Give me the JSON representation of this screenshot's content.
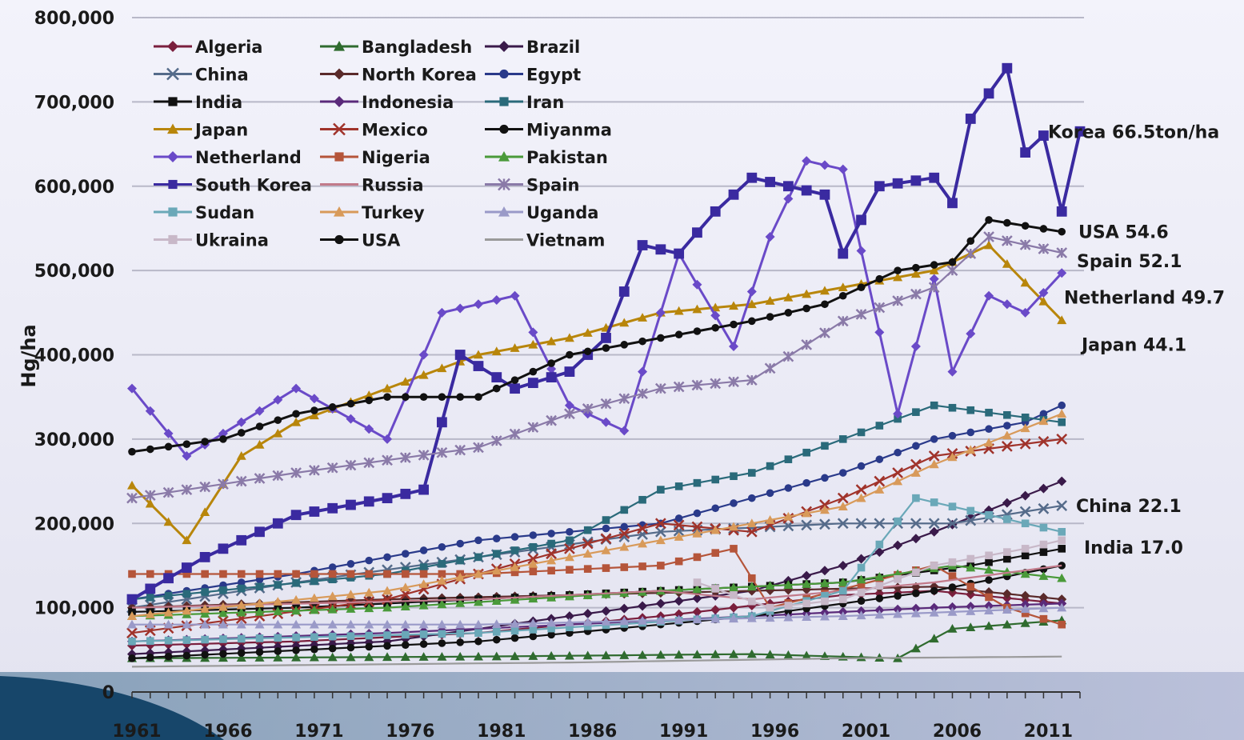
{
  "chart_data": {
    "type": "line",
    "title": "",
    "xlabel": "",
    "ylabel": "Hg/ha",
    "xlim": [
      1961,
      2013
    ],
    "ylim": [
      0,
      800000
    ],
    "yticks": [
      0,
      100000,
      200000,
      300000,
      400000,
      500000,
      600000,
      700000,
      800000
    ],
    "ytick_labels": [
      "0",
      "100,000",
      "200,000",
      "300,000",
      "400,000",
      "500,000",
      "600,000",
      "700,000",
      "800,000"
    ],
    "xticks": [
      1961,
      1966,
      1971,
      1976,
      1981,
      1986,
      1991,
      1996,
      2001,
      2006,
      2011
    ],
    "xtick_labels": [
      "1961",
      "1966",
      "1971",
      "1976",
      "1981",
      "1986",
      "1991",
      "1996",
      "2001",
      "2006",
      "2011"
    ],
    "grid": true,
    "legend": "top-left",
    "x_start": 1961,
    "series": [
      {
        "name": "Algeria",
        "color": "#7a1f3d",
        "marker": "diamond",
        "anchors": [
          [
            1961,
            55000
          ],
          [
            1970,
            60000
          ],
          [
            1980,
            70000
          ],
          [
            1990,
            90000
          ],
          [
            2000,
            115000
          ],
          [
            2005,
            120000
          ],
          [
            2012,
            105000
          ]
        ]
      },
      {
        "name": "Bangladesh",
        "color": "#2f6b2f",
        "marker": "triangle",
        "anchors": [
          [
            1961,
            40000
          ],
          [
            1980,
            42000
          ],
          [
            1995,
            45000
          ],
          [
            2003,
            40000
          ],
          [
            2006,
            75000
          ],
          [
            2012,
            85000
          ]
        ]
      },
      {
        "name": "Brazil",
        "color": "#3a1a4a",
        "marker": "diamond",
        "anchors": [
          [
            1961,
            45000
          ],
          [
            1975,
            60000
          ],
          [
            1985,
            90000
          ],
          [
            1995,
            120000
          ],
          [
            2000,
            150000
          ],
          [
            2005,
            190000
          ],
          [
            2012,
            250000
          ]
        ]
      },
      {
        "name": "China",
        "color": "#556b8a",
        "marker": "x",
        "anchors": [
          [
            1961,
            100000
          ],
          [
            1970,
            130000
          ],
          [
            1980,
            160000
          ],
          [
            1990,
            190000
          ],
          [
            2000,
            200000
          ],
          [
            2006,
            200000
          ],
          [
            2012,
            221000
          ]
        ]
      },
      {
        "name": "North Korea",
        "color": "#5a2a2a",
        "marker": "diamond",
        "anchors": [
          [
            1961,
            100000
          ],
          [
            1975,
            110000
          ],
          [
            1985,
            115000
          ],
          [
            1995,
            120000
          ],
          [
            2005,
            125000
          ],
          [
            2012,
            110000
          ]
        ]
      },
      {
        "name": "Egypt",
        "color": "#2a3a8a",
        "marker": "circle",
        "anchors": [
          [
            1961,
            110000
          ],
          [
            1970,
            140000
          ],
          [
            1980,
            180000
          ],
          [
            1990,
            200000
          ],
          [
            2000,
            260000
          ],
          [
            2005,
            300000
          ],
          [
            2010,
            320000
          ],
          [
            2012,
            340000
          ]
        ]
      },
      {
        "name": "India",
        "color": "#111111",
        "marker": "square",
        "anchors": [
          [
            1961,
            95000
          ],
          [
            1970,
            100000
          ],
          [
            1980,
            110000
          ],
          [
            1990,
            120000
          ],
          [
            2000,
            130000
          ],
          [
            2007,
            150000
          ],
          [
            2012,
            170000
          ]
        ]
      },
      {
        "name": "Indonesia",
        "color": "#5a2a7a",
        "marker": "diamond",
        "anchors": [
          [
            1961,
            60000
          ],
          [
            1975,
            70000
          ],
          [
            1985,
            80000
          ],
          [
            1995,
            90000
          ],
          [
            2005,
            100000
          ],
          [
            2012,
            105000
          ]
        ]
      },
      {
        "name": "Iran",
        "color": "#2a6a7a",
        "marker": "square",
        "anchors": [
          [
            1961,
            110000
          ],
          [
            1975,
            140000
          ],
          [
            1985,
            180000
          ],
          [
            1990,
            240000
          ],
          [
            1995,
            260000
          ],
          [
            2000,
            300000
          ],
          [
            2005,
            340000
          ],
          [
            2012,
            320000
          ]
        ]
      },
      {
        "name": "Japan",
        "color": "#b8860b",
        "marker": "triangle",
        "anchors": [
          [
            1961,
            245000
          ],
          [
            1964,
            180000
          ],
          [
            1967,
            280000
          ],
          [
            1970,
            320000
          ],
          [
            1975,
            360000
          ],
          [
            1980,
            400000
          ],
          [
            1985,
            420000
          ],
          [
            1990,
            450000
          ],
          [
            1995,
            460000
          ],
          [
            2000,
            480000
          ],
          [
            2005,
            500000
          ],
          [
            2008,
            530000
          ],
          [
            2012,
            441000
          ]
        ]
      },
      {
        "name": "Mexico",
        "color": "#a0332b",
        "marker": "x",
        "anchors": [
          [
            1961,
            70000
          ],
          [
            1975,
            110000
          ],
          [
            1985,
            170000
          ],
          [
            1990,
            200000
          ],
          [
            1995,
            190000
          ],
          [
            2000,
            230000
          ],
          [
            2005,
            280000
          ],
          [
            2012,
            300000
          ]
        ]
      },
      {
        "name": "Miyanma",
        "color": "#111111",
        "marker": "circle",
        "anchors": [
          [
            1961,
            40000
          ],
          [
            1980,
            60000
          ],
          [
            1995,
            90000
          ],
          [
            2005,
            120000
          ],
          [
            2012,
            150000
          ]
        ]
      },
      {
        "name": "Netherland",
        "color": "#6a4ac8",
        "marker": "diamond",
        "anchors": [
          [
            1961,
            360000
          ],
          [
            1964,
            280000
          ],
          [
            1970,
            360000
          ],
          [
            1975,
            300000
          ],
          [
            1978,
            450000
          ],
          [
            1982,
            470000
          ],
          [
            1985,
            340000
          ],
          [
            1988,
            310000
          ],
          [
            1991,
            520000
          ],
          [
            1994,
            410000
          ],
          [
            1996,
            540000
          ],
          [
            1998,
            630000
          ],
          [
            2000,
            620000
          ],
          [
            2003,
            330000
          ],
          [
            2005,
            490000
          ],
          [
            2006,
            380000
          ],
          [
            2008,
            470000
          ],
          [
            2010,
            450000
          ],
          [
            2012,
            497000
          ]
        ]
      },
      {
        "name": "Nigeria",
        "color": "#b5553a",
        "marker": "square",
        "anchors": [
          [
            1961,
            140000
          ],
          [
            1970,
            140000
          ],
          [
            1980,
            140000
          ],
          [
            1990,
            150000
          ],
          [
            1994,
            170000
          ],
          [
            1996,
            100000
          ],
          [
            2005,
            150000
          ],
          [
            2009,
            100000
          ],
          [
            2012,
            80000
          ]
        ]
      },
      {
        "name": "Pakistan",
        "color": "#4a9a3a",
        "marker": "triangle",
        "anchors": [
          [
            1961,
            90000
          ],
          [
            1975,
            100000
          ],
          [
            1990,
            120000
          ],
          [
            2000,
            130000
          ],
          [
            2006,
            150000
          ],
          [
            2012,
            135000
          ]
        ]
      },
      {
        "name": "South Korea",
        "color": "#3a2aa0",
        "marker": "square",
        "anchors": [
          [
            1961,
            110000
          ],
          [
            1965,
            160000
          ],
          [
            1970,
            210000
          ],
          [
            1975,
            230000
          ],
          [
            1977,
            240000
          ],
          [
            1979,
            400000
          ],
          [
            1982,
            360000
          ],
          [
            1985,
            380000
          ],
          [
            1987,
            420000
          ],
          [
            1989,
            530000
          ],
          [
            1991,
            520000
          ],
          [
            1993,
            570000
          ],
          [
            1995,
            610000
          ],
          [
            1999,
            590000
          ],
          [
            2000,
            520000
          ],
          [
            2002,
            600000
          ],
          [
            2005,
            610000
          ],
          [
            2006,
            580000
          ],
          [
            2007,
            680000
          ],
          [
            2009,
            740000
          ],
          [
            2010,
            640000
          ],
          [
            2011,
            660000
          ],
          [
            2012,
            570000
          ],
          [
            2013,
            665000
          ]
        ]
      },
      {
        "name": "Russia",
        "color": "#c27a8a",
        "marker": "none",
        "anchors": [
          [
            1961,
            100000
          ],
          [
            1980,
            110000
          ],
          [
            1990,
            120000
          ],
          [
            1995,
            110000
          ],
          [
            2005,
            130000
          ],
          [
            2012,
            150000
          ]
        ]
      },
      {
        "name": "Spain",
        "color": "#8a7aa8",
        "marker": "star",
        "anchors": [
          [
            1961,
            230000
          ],
          [
            1970,
            260000
          ],
          [
            1980,
            290000
          ],
          [
            1985,
            330000
          ],
          [
            1990,
            360000
          ],
          [
            1995,
            370000
          ],
          [
            2000,
            440000
          ],
          [
            2005,
            480000
          ],
          [
            2008,
            540000
          ],
          [
            2012,
            521000
          ]
        ]
      },
      {
        "name": "Sudan",
        "color": "#6aa8b8",
        "marker": "square",
        "anchors": [
          [
            1961,
            60000
          ],
          [
            1980,
            70000
          ],
          [
            1995,
            90000
          ],
          [
            2000,
            120000
          ],
          [
            2004,
            230000
          ],
          [
            2006,
            220000
          ],
          [
            2012,
            190000
          ]
        ]
      },
      {
        "name": "Turkey",
        "color": "#d89a5a",
        "marker": "triangle",
        "anchors": [
          [
            1961,
            90000
          ],
          [
            1975,
            120000
          ],
          [
            1985,
            160000
          ],
          [
            1995,
            200000
          ],
          [
            2000,
            220000
          ],
          [
            2005,
            270000
          ],
          [
            2012,
            330000
          ]
        ]
      },
      {
        "name": "Uganda",
        "color": "#9a9ac8",
        "marker": "triangle",
        "anchors": [
          [
            1961,
            80000
          ],
          [
            1980,
            80000
          ],
          [
            2000,
            90000
          ],
          [
            2012,
            100000
          ]
        ]
      },
      {
        "name": "Ukraina",
        "color": "#c8b8c8",
        "marker": "square",
        "anchors": [
          [
            1992,
            130000
          ],
          [
            1996,
            100000
          ],
          [
            2000,
            110000
          ],
          [
            2005,
            150000
          ],
          [
            2010,
            170000
          ],
          [
            2012,
            180000
          ]
        ]
      },
      {
        "name": "USA",
        "color": "#111111",
        "marker": "circle",
        "anchors": [
          [
            1961,
            285000
          ],
          [
            1966,
            300000
          ],
          [
            1970,
            330000
          ],
          [
            1975,
            350000
          ],
          [
            1980,
            350000
          ],
          [
            1985,
            400000
          ],
          [
            1990,
            420000
          ],
          [
            1995,
            440000
          ],
          [
            1999,
            460000
          ],
          [
            2003,
            500000
          ],
          [
            2006,
            510000
          ],
          [
            2008,
            560000
          ],
          [
            2012,
            546000
          ]
        ]
      },
      {
        "name": "Vietnam",
        "color": "#9a9a9a",
        "marker": "none",
        "anchors": [
          [
            1961,
            30000
          ],
          [
            1985,
            35000
          ],
          [
            2000,
            40000
          ],
          [
            2012,
            42000
          ]
        ]
      }
    ],
    "annotations": [
      {
        "text": "Korea 66.5ton/ha",
        "value": 665000
      },
      {
        "text": "USA 54.6",
        "value": 546000
      },
      {
        "text": "Spain 52.1",
        "value": 521000
      },
      {
        "text": "Netherland 49.7",
        "value": 497000
      },
      {
        "text": "Japan 44.1",
        "value": 441000
      },
      {
        "text": "China 22.1",
        "value": 221000
      },
      {
        "text": "India 17.0",
        "value": 170000
      }
    ]
  }
}
